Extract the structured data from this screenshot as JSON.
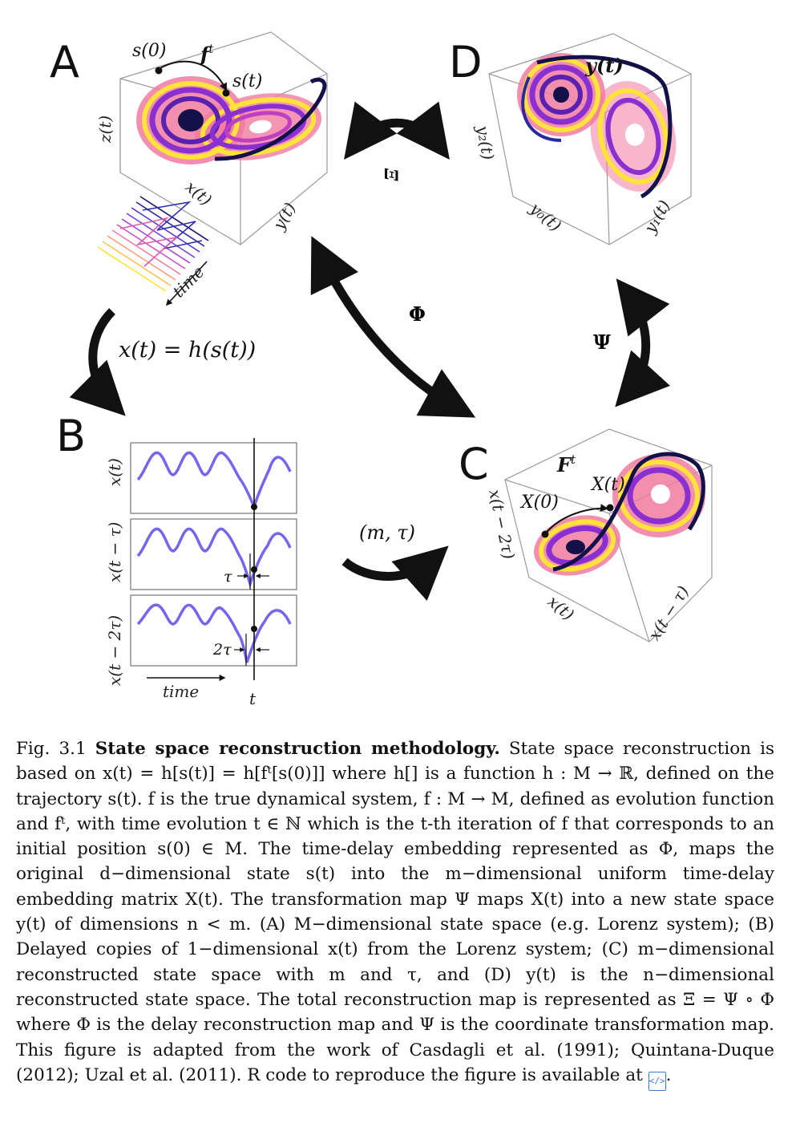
{
  "panels": {
    "A": {
      "letter": "A",
      "labels": {
        "s0": "s(0)",
        "ft": "f",
        "ft_sup": "t",
        "st": "s(t)",
        "z": "z(t)",
        "x": "x(t)",
        "y": "y(t)",
        "time": "time"
      }
    },
    "B": {
      "letter": "B",
      "rows": [
        {
          "ylabel": "x(t)",
          "shift": ""
        },
        {
          "ylabel": "x(t − τ)",
          "shift": "τ"
        },
        {
          "ylabel": "x(t − 2τ)",
          "shift": "2τ"
        }
      ],
      "xlabel": "time",
      "t_label": "t"
    },
    "C": {
      "letter": "C",
      "labels": {
        "Ft": "F",
        "Ft_sup": "t",
        "X0": "X(0)",
        "Xt": "X(t)",
        "z": "x(t − 2τ)",
        "x": "x(t)",
        "y": "x(t − τ)"
      }
    },
    "D": {
      "letter": "D",
      "labels": {
        "yt": "y(t)",
        "y2": "y₂(t)",
        "y0": "y₀(t)",
        "y1": "y₁(t)"
      }
    }
  },
  "arrows": {
    "h_map": "x(t) = h(s(t))",
    "xi": "Ξ",
    "phi": "Φ",
    "psi": "Ψ",
    "m_tau": "(m, τ)"
  },
  "caption": {
    "prefix": "Fig. 3.1",
    "title": "State space reconstruction methodology.",
    "body": "State space reconstruction is based on x(t) = h[s(t)] = h[fᵗ[s(0)]] where h[] is a function h : M → ℝ, defined on the trajectory s(t). f is the true dynamical system, f : M → M, defined as evolution function and fᵗ, with time evolution t ∈ ℕ which is the t-th iteration of f that corresponds to an initial position s(0) ∈ M. The time-delay embedding represented as Φ, maps the original d−dimensional state s(t) into the m−dimensional uniform time-delay embedding matrix X(t). The transformation map Ψ maps X(t) into a new state space y(t) of dimensions n < m. (A) M−dimensional state space (e.g. Lorenz system); (B) Delayed copies of 1−dimensional x(t) from the Lorenz system; (C) m−dimensional reconstructed state space with m and τ, and (D) y(t) is the n−dimensional reconstructed state space. The total reconstruction map is represented as Ξ = Ψ ∘ Φ where Φ is the delay reconstruction map and Ψ is the coordinate transformation map. This figure is adapted from the work of Casdagli et al. (1991); Quintana-Duque (2012); Uzal et al. (2011). R code to reproduce the figure is available at",
    "suffix": "."
  },
  "colors": {
    "attractor_dark": "#14114a",
    "attractor_mid": "#8a2fd0",
    "attractor_pink": "#f07aa0",
    "attractor_yellow": "#ffe23a",
    "signal_blue": "#7466ee",
    "code_icon": "#3b7bd6"
  },
  "icons": [
    "code-file-icon"
  ]
}
